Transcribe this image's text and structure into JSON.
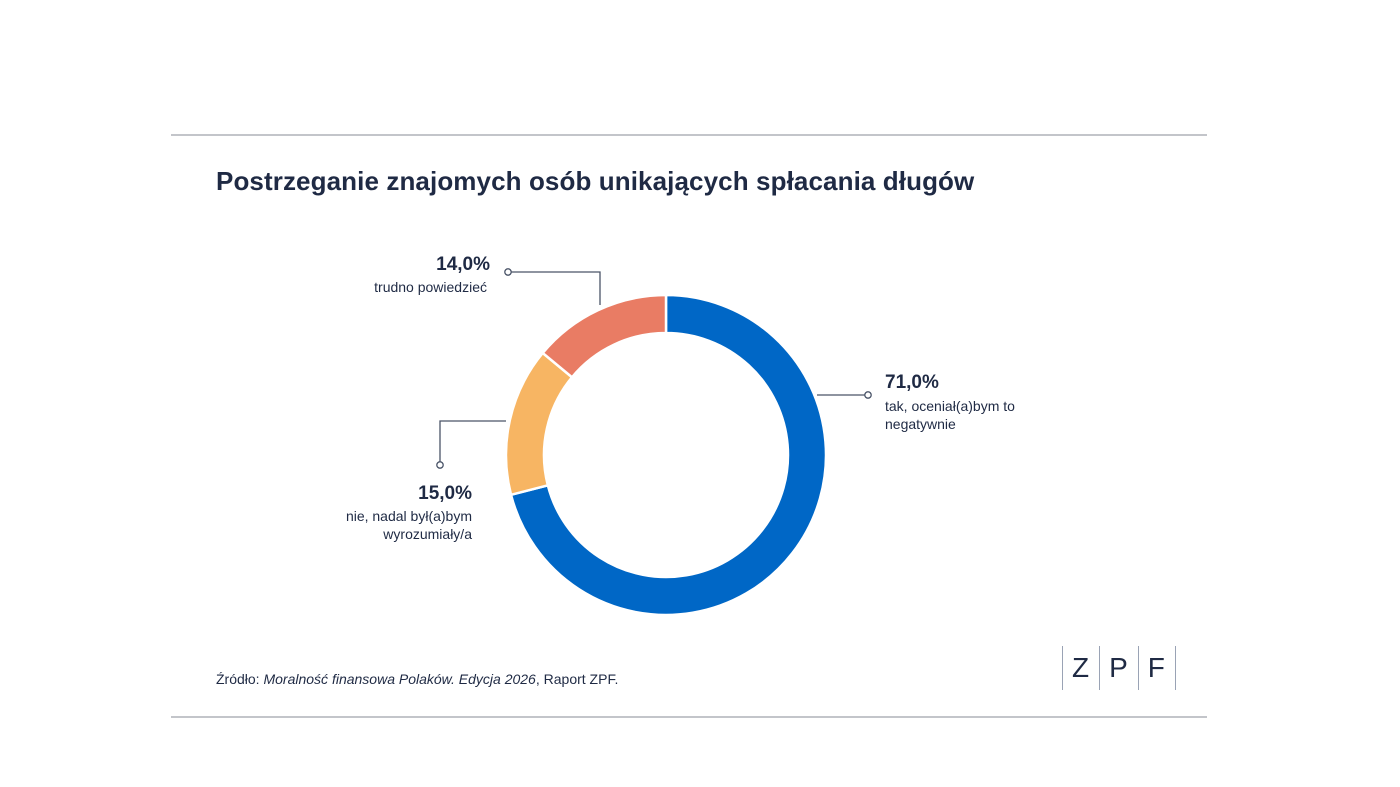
{
  "title": "Postrzeganie znajomych osób unikających spłacania długów",
  "source": {
    "prefix": "Źródło: ",
    "italic": "Moralność finansowa Polaków. Edycja 2026",
    "suffix": ", Raport ZPF."
  },
  "logo": {
    "letters": [
      "Z",
      "P",
      "F"
    ]
  },
  "chart_data": {
    "type": "pie",
    "donut": true,
    "title": "Postrzeganie znajomych osób unikających spłacania długów",
    "slices": [
      {
        "value_label": "71,0%",
        "value": 71.0,
        "label": "tak, oceniał(a)bym to negatywnie",
        "label_lines": [
          "tak, oceniał(a)bym to",
          "negatywnie"
        ],
        "color": "#0067c6"
      },
      {
        "value_label": "15,0%",
        "value": 15.0,
        "label": "nie, nadal był(a)bym wyrozumiały/a",
        "label_lines": [
          "nie, nadal był(a)bym",
          "wyrozumiały/a"
        ],
        "color": "#f7b563"
      },
      {
        "value_label": "14,0%",
        "value": 14.0,
        "label": "trudno powiedzieć",
        "label_lines": [
          "trudno powiedzieć"
        ],
        "color": "#e97c64"
      }
    ]
  }
}
